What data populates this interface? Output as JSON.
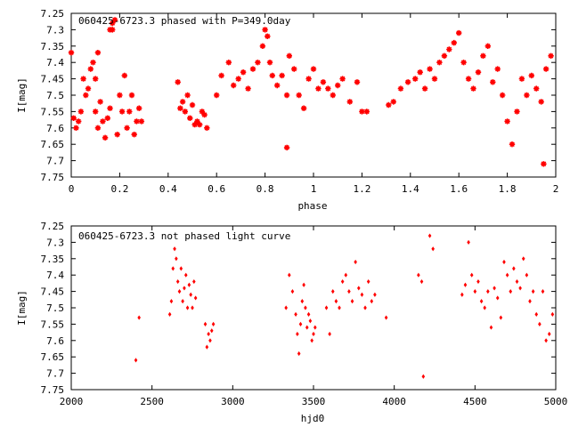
{
  "chart_data": [
    {
      "type": "scatter",
      "title": "060425-6723.3 phased with P=349.0day",
      "xlabel": "phase",
      "ylabel": "I[mag]",
      "xlim": [
        0,
        2
      ],
      "ylim": [
        7.75,
        7.25
      ],
      "y_inverted": true,
      "grid": false,
      "marker": "star",
      "color": "#ff0000",
      "xticks": [
        0,
        0.2,
        0.4,
        0.6,
        0.8,
        1,
        1.2,
        1.4,
        1.6,
        1.8,
        2
      ],
      "xtick_labels": [
        "0",
        "0.2",
        "0.4",
        "0.6",
        "0.8",
        "1",
        "1.2",
        "1.4",
        "1.6",
        "1.8",
        "2"
      ],
      "yticks": [
        7.25,
        7.3,
        7.35,
        7.4,
        7.45,
        7.5,
        7.55,
        7.6,
        7.65,
        7.7,
        7.75
      ],
      "ytick_labels": [
        "7.25",
        "7.3",
        "7.35",
        "7.4",
        "7.45",
        "7.5",
        "7.55",
        "7.6",
        "7.65",
        "7.7",
        "7.75"
      ],
      "series": [
        {
          "x": [
            0.0,
            0.01,
            0.02,
            0.03,
            0.04,
            0.05,
            0.06,
            0.07,
            0.08,
            0.09,
            0.1,
            0.11,
            0.12,
            0.13,
            0.14,
            0.15,
            0.16,
            0.17,
            0.18,
            0.19,
            0.2,
            0.21,
            0.22,
            0.23,
            0.24,
            0.25,
            0.26,
            0.27,
            0.28,
            0.29,
            0.17,
            0.16,
            0.1,
            0.11,
            0.44,
            0.45,
            0.46,
            0.47,
            0.48,
            0.49,
            0.5,
            0.51,
            0.52,
            0.53,
            0.54,
            0.55,
            0.56,
            0.6,
            0.62,
            0.65,
            0.67,
            0.69,
            0.71,
            0.73,
            0.75,
            0.77,
            0.79,
            0.8,
            0.81,
            0.82,
            0.83,
            0.85,
            0.87,
            0.89,
            0.9,
            0.92,
            0.94,
            0.96,
            0.98,
            1.0,
            1.02,
            1.04,
            1.06,
            1.08,
            1.1,
            1.12,
            1.15,
            1.18,
            1.2,
            1.22,
            0.89,
            1.31,
            1.33,
            1.36,
            1.39,
            1.42,
            1.44,
            1.46,
            1.48,
            1.5,
            1.52,
            1.54,
            1.56,
            1.58,
            1.6,
            1.62,
            1.64,
            1.66,
            1.68,
            1.7,
            1.72,
            1.74,
            1.76,
            1.78,
            1.8,
            1.82,
            1.84,
            1.86,
            1.88,
            1.9,
            1.92,
            1.94,
            1.96,
            1.98,
            1.95
          ],
          "y": [
            7.37,
            7.57,
            7.6,
            7.58,
            7.55,
            7.45,
            7.5,
            7.48,
            7.42,
            7.4,
            7.55,
            7.6,
            7.52,
            7.58,
            7.63,
            7.57,
            7.54,
            7.3,
            7.27,
            7.62,
            7.5,
            7.55,
            7.44,
            7.6,
            7.55,
            7.5,
            7.62,
            7.58,
            7.54,
            7.58,
            7.28,
            7.3,
            7.45,
            7.37,
            7.46,
            7.54,
            7.52,
            7.55,
            7.5,
            7.57,
            7.53,
            7.59,
            7.58,
            7.59,
            7.55,
            7.56,
            7.6,
            7.5,
            7.44,
            7.4,
            7.47,
            7.45,
            7.43,
            7.48,
            7.42,
            7.4,
            7.35,
            7.3,
            7.32,
            7.4,
            7.44,
            7.47,
            7.44,
            7.5,
            7.38,
            7.42,
            7.5,
            7.54,
            7.45,
            7.42,
            7.48,
            7.46,
            7.48,
            7.5,
            7.47,
            7.45,
            7.52,
            7.46,
            7.55,
            7.55,
            7.66,
            7.53,
            7.52,
            7.48,
            7.46,
            7.45,
            7.43,
            7.48,
            7.42,
            7.45,
            7.4,
            7.38,
            7.36,
            7.34,
            7.31,
            7.4,
            7.45,
            7.48,
            7.43,
            7.38,
            7.35,
            7.46,
            7.42,
            7.5,
            7.58,
            7.65,
            7.55,
            7.45,
            7.5,
            7.44,
            7.48,
            7.52,
            7.42,
            7.38,
            7.71
          ],
          "approximate": true
        }
      ]
    },
    {
      "type": "scatter",
      "title": "060425-6723.3 not phased light curve",
      "xlabel": "hjd0",
      "ylabel": "I[mag]",
      "xlim": [
        2000,
        5000
      ],
      "ylim": [
        7.75,
        7.25
      ],
      "y_inverted": true,
      "grid": false,
      "marker": "diamond",
      "color": "#ff0000",
      "xticks": [
        2000,
        2500,
        3000,
        3500,
        4000,
        4500,
        5000
      ],
      "xtick_labels": [
        "2000",
        "2500",
        "3000",
        "3500",
        "4000",
        "4500",
        "5000"
      ],
      "yticks": [
        7.25,
        7.3,
        7.35,
        7.4,
        7.45,
        7.5,
        7.55,
        7.6,
        7.65,
        7.7,
        7.75
      ],
      "ytick_labels": [
        "7.25",
        "7.3",
        "7.35",
        "7.4",
        "7.45",
        "7.5",
        "7.55",
        "7.6",
        "7.65",
        "7.7",
        "7.75"
      ],
      "series": [
        {
          "x": [
            2400,
            2420,
            2610,
            2620,
            2630,
            2640,
            2650,
            2660,
            2670,
            2680,
            2690,
            2700,
            2710,
            2720,
            2730,
            2740,
            2750,
            2760,
            2770,
            2830,
            2840,
            2850,
            2860,
            2870,
            2880,
            3330,
            3350,
            3370,
            3390,
            3400,
            3410,
            3420,
            3430,
            3440,
            3450,
            3460,
            3470,
            3480,
            3490,
            3500,
            3510,
            3580,
            3600,
            3620,
            3640,
            3660,
            3680,
            3700,
            3720,
            3740,
            3760,
            3780,
            3800,
            3820,
            3840,
            3860,
            3880,
            3950,
            4150,
            4170,
            4180,
            4220,
            4240,
            4420,
            4440,
            4460,
            4480,
            4500,
            4520,
            4540,
            4560,
            4580,
            4600,
            4620,
            4640,
            4660,
            4680,
            4700,
            4720,
            4740,
            4760,
            4780,
            4800,
            4820,
            4840,
            4860,
            4880,
            4900,
            4920,
            4940,
            4960,
            4980
          ],
          "y": [
            7.66,
            7.53,
            7.52,
            7.48,
            7.38,
            7.32,
            7.35,
            7.42,
            7.45,
            7.38,
            7.48,
            7.44,
            7.4,
            7.5,
            7.43,
            7.46,
            7.5,
            7.42,
            7.47,
            7.55,
            7.62,
            7.58,
            7.6,
            7.57,
            7.55,
            7.5,
            7.4,
            7.45,
            7.52,
            7.58,
            7.64,
            7.55,
            7.48,
            7.43,
            7.5,
            7.56,
            7.52,
            7.54,
            7.6,
            7.58,
            7.56,
            7.5,
            7.58,
            7.45,
            7.48,
            7.5,
            7.42,
            7.4,
            7.45,
            7.48,
            7.36,
            7.44,
            7.46,
            7.5,
            7.42,
            7.48,
            7.46,
            7.53,
            7.4,
            7.42,
            7.71,
            7.28,
            7.32,
            7.46,
            7.43,
            7.3,
            7.4,
            7.45,
            7.42,
            7.48,
            7.5,
            7.45,
            7.56,
            7.44,
            7.47,
            7.53,
            7.36,
            7.4,
            7.45,
            7.38,
            7.42,
            7.44,
            7.35,
            7.4,
            7.48,
            7.45,
            7.52,
            7.55,
            7.45,
            7.6,
            7.58,
            7.52
          ],
          "approximate": true
        }
      ]
    }
  ]
}
